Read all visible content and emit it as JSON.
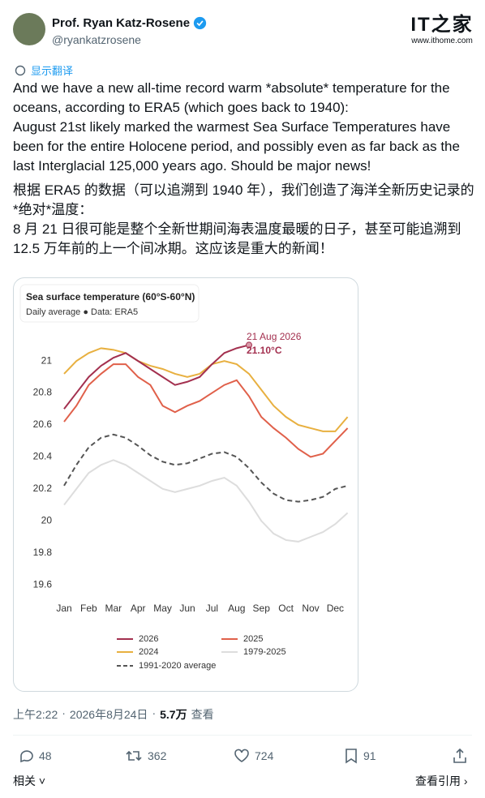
{
  "header": {
    "name": "Prof. Ryan Katz-Rosene",
    "handle": "@ryankatzrosene"
  },
  "watermark": {
    "logo": "IT之家",
    "url": "www.ithome.com"
  },
  "translate": "显示翻译",
  "text": {
    "en": [
      "And we have a new all-time record warm *absolute* temperature for the oceans, according to ERA5 (which goes back to 1940):",
      "August 21st likely marked the warmest Sea Surface Temperatures have been for the entire Holocene period, and possibly even as far back as the last Interglacial 125,000 years ago. Should be major news!"
    ],
    "zh": [
      "根据 ERA5 的数据（可以追溯到 1940 年），我们创造了海洋全新历史记录的 *绝对*温度：",
      "8 月 21 日很可能是整个全新世期间海表温度最暖的日子，甚至可能追溯到 12.5 万年前的上一个间冰期。这应该是重大的新闻！"
    ]
  },
  "chart_data": {
    "type": "line",
    "title": "Sea surface temperature (60°S-60°N)",
    "subtitle": "Daily average ● Data: ERA5",
    "annotation": {
      "date": "21 Aug 2026",
      "value": "21.10°C"
    },
    "categories": [
      "Jan",
      null,
      "Feb",
      null,
      "Mar",
      null,
      "Apr",
      null,
      "May",
      null,
      "Jun",
      null,
      "Jul",
      null,
      "Aug",
      null,
      "Sep",
      null,
      "Oct",
      null,
      "Nov",
      null,
      "Dec",
      null
    ],
    "series": [
      {
        "name": "2026",
        "color": "#a3304f",
        "values": [
          20.7,
          20.8,
          20.9,
          20.97,
          21.02,
          21.05,
          21.0,
          20.95,
          20.9,
          20.85,
          20.87,
          20.9,
          20.98,
          21.05,
          21.08,
          21.1,
          null,
          null,
          null,
          null,
          null,
          null,
          null,
          null
        ]
      },
      {
        "name": "2025",
        "color": "#e0604a",
        "values": [
          20.62,
          20.72,
          20.85,
          20.92,
          20.98,
          20.98,
          20.9,
          20.85,
          20.72,
          20.68,
          20.72,
          20.75,
          20.8,
          20.85,
          20.88,
          20.78,
          20.65,
          20.58,
          20.52,
          20.45,
          20.4,
          20.42,
          20.5,
          20.58
        ]
      },
      {
        "name": "2024",
        "color": "#e8b040",
        "values": [
          20.92,
          21.0,
          21.05,
          21.08,
          21.07,
          21.05,
          21.0,
          20.97,
          20.95,
          20.92,
          20.9,
          20.92,
          20.98,
          21.0,
          20.98,
          20.92,
          20.82,
          20.72,
          20.65,
          20.6,
          20.58,
          20.56,
          20.56,
          20.65
        ]
      },
      {
        "name": "1979-2025",
        "color": "#dddddd",
        "values": [
          20.1,
          20.2,
          20.3,
          20.35,
          20.38,
          20.35,
          20.3,
          20.25,
          20.2,
          20.18,
          20.2,
          20.22,
          20.25,
          20.27,
          20.22,
          20.12,
          20.0,
          19.92,
          19.88,
          19.87,
          19.9,
          19.93,
          19.98,
          20.05
        ]
      },
      {
        "name": "1991-2020 average",
        "color": "#555555",
        "style": "dashed",
        "values": [
          20.22,
          20.35,
          20.46,
          20.52,
          20.54,
          20.52,
          20.47,
          20.41,
          20.37,
          20.35,
          20.36,
          20.39,
          20.42,
          20.43,
          20.4,
          20.33,
          20.24,
          20.17,
          20.13,
          20.12,
          20.13,
          20.15,
          20.2,
          20.22
        ]
      }
    ],
    "ylim": [
      19.55,
      21.3
    ],
    "yticks": [
      19.6,
      19.8,
      20,
      20.2,
      20.4,
      20.6,
      20.8,
      21
    ],
    "grid": false
  },
  "meta": {
    "time": "上午2:22",
    "date": "2026年8月24日",
    "views": "5.7万",
    "views_label": "查看"
  },
  "stats": {
    "replies": 48,
    "reposts": 362,
    "likes": 724,
    "bookmarks": 91
  },
  "links": {
    "related": "相关",
    "quotes": "查看引用"
  }
}
